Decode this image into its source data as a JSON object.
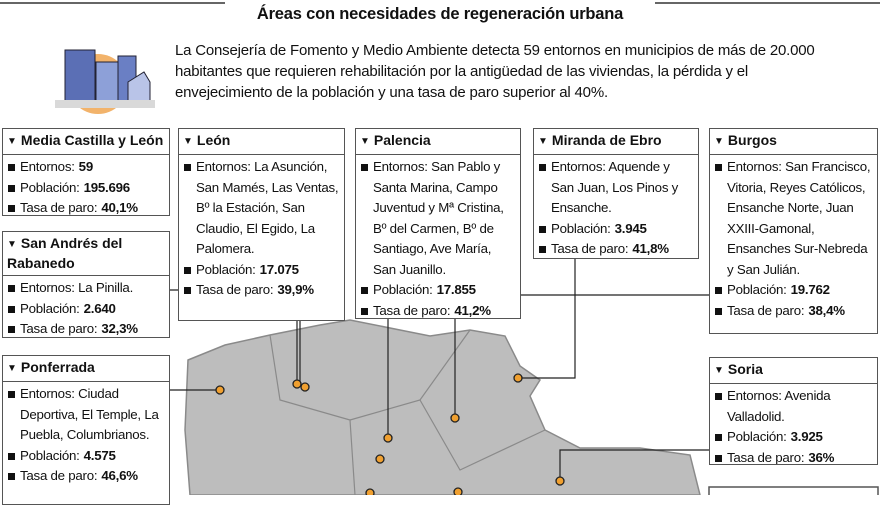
{
  "header": {
    "title": "Áreas con necesidades de regeneración urbana",
    "intro": "La Consejería de Fomento y Medio Ambiente detecta 59 entornos en municipios de más de 20.000 habitantes que requieren rehabilitación por la antigüedad de las viviendas, la pérdida y el envejecimiento de la población y una tasa de paro superior al 40%."
  },
  "boxes": [
    {
      "title": "Media Castilla y León",
      "lines": [
        {
          "label": "Entornos:",
          "value": "59"
        },
        {
          "label": "Población:",
          "value": "195.696"
        },
        {
          "label": "Tasa de paro:",
          "value": "40,1%"
        }
      ]
    },
    {
      "title": "San Andrés del Rabanedo",
      "lines": [
        {
          "label": "Entornos: La Pinilla."
        },
        {
          "label": "Población:",
          "value": "2.640"
        },
        {
          "label": "Tasa de paro:",
          "value": "32,3%"
        }
      ]
    },
    {
      "title": "Ponferrada",
      "lines": [
        {
          "label": "Entornos: Ciudad Deportiva, El Temple, La Puebla, Columbrianos."
        },
        {
          "label": "Población:",
          "value": "4.575"
        },
        {
          "label": "Tasa de paro:",
          "value": "46,6%"
        }
      ]
    },
    {
      "title": "León",
      "lines": [
        {
          "label": "Entornos: La Asunción, San Mamés, Las Ventas, Bº la Estación, San Claudio, El Egido, La Palomera."
        },
        {
          "label": "Población:",
          "value": "17.075"
        },
        {
          "label": "Tasa de paro:",
          "value": "39,9%"
        }
      ]
    },
    {
      "title": "Palencia",
      "lines": [
        {
          "label": "Entornos: San Pablo y Santa Marina, Campo Juventud y Mª Cristina, Bº del Carmen, Bº de Santiago, Ave María, San Juanillo."
        },
        {
          "label": "Población:",
          "value": "17.855"
        },
        {
          "label": "Tasa de paro:",
          "value": "41,2%"
        }
      ]
    },
    {
      "title": "Miranda de Ebro",
      "lines": [
        {
          "label": "Entornos: Aquende y San Juan, Los Pinos y Ensanche."
        },
        {
          "label": "Población:",
          "value": "3.945"
        },
        {
          "label": "Tasa de paro:",
          "value": "41,8%"
        }
      ]
    },
    {
      "title": "Burgos",
      "lines": [
        {
          "label": "Entornos: San Francisco, Vitoria, Reyes Católicos, Ensanche Norte, Juan XXIII-Gamonal, Ensanches Sur-Nebreda y San Julián."
        },
        {
          "label": "Población:",
          "value": "19.762"
        },
        {
          "label": "Tasa de paro:",
          "value": "38,4%"
        }
      ]
    },
    {
      "title": "Soria",
      "lines": [
        {
          "label": "Entornos: Avenida Valladolid."
        },
        {
          "label": "Población:",
          "value": "3.925"
        },
        {
          "label": "Tasa de paro:",
          "value": "36%"
        }
      ]
    }
  ]
}
